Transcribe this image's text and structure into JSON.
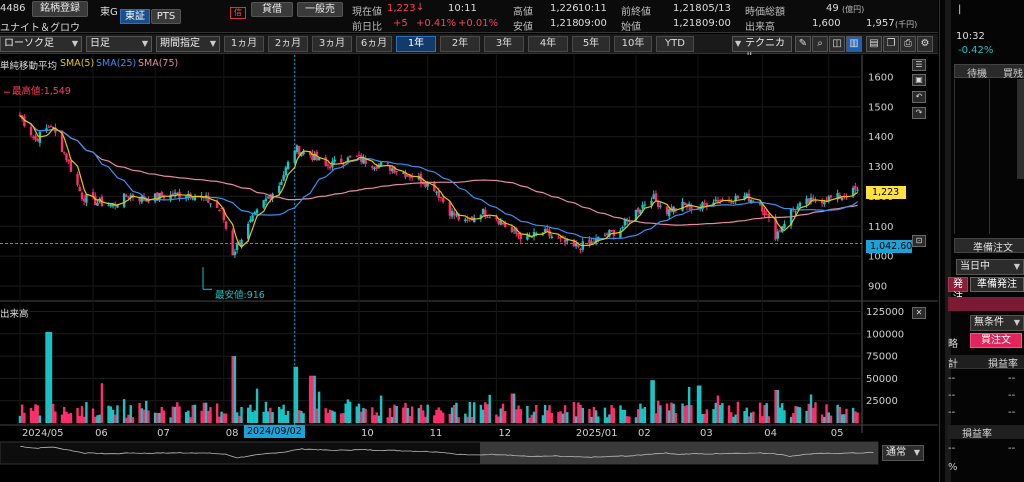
{
  "header": {
    "code": "4486",
    "register_label": "銘柄登録",
    "market": "東G",
    "name": "ユナイト＆グロウ",
    "exchange_tab_tse": "東証",
    "exchange_tab_pts": "PTS",
    "badge": "信",
    "lend_label": "貸借",
    "category_label": "一般売",
    "current_price_label": "現在値",
    "current_price": "1,223",
    "current_arrow": "↓",
    "current_time": "10:11",
    "change_label": "前日比",
    "change_value": "+5",
    "change_pct": "+0.41%",
    "change_pct2": "+0.01%",
    "high_label": "高値",
    "high_value": "1,226",
    "high_time": "10:11",
    "low_label": "安値",
    "low_value": "1,218",
    "low_time": "09:00",
    "prev_close_label": "前終値",
    "prev_close_value": "1,218",
    "prev_close_date": "05/13",
    "open_label": "始値",
    "open_value": "1,218",
    "open_time": "09:00",
    "market_cap_label": "時価総額",
    "market_cap_value": "49",
    "market_cap_unit": "(億円)",
    "volume_label": "出来高",
    "volume_value": "1,600",
    "turnover_value": "1,957",
    "turnover_unit": "(千円)"
  },
  "toolbar": {
    "chart_type": "ローソク足",
    "period_type": "日足",
    "period_spec": "期間指定",
    "ranges": [
      "1ヵ月",
      "2ヵ月",
      "3ヵ月",
      "6ヵ月",
      "1年",
      "2年",
      "3年",
      "4年",
      "5年",
      "10年",
      "YTD"
    ],
    "active_range": "1年",
    "technical_label": "テクニカル"
  },
  "chart": {
    "legend_title": "単純移動平均",
    "sma5_label": "SMA(5)",
    "sma25_label": "SMA(25)",
    "sma75_label": "SMA(75)",
    "high_annotation": "最高値:1,549",
    "low_annotation": "最安値:916",
    "last_price_tag": "1,223",
    "hline_tag": "1,042.60",
    "volume_title": "出来高",
    "cursor_date_tag": "2024/09/02",
    "view_mode": "通常",
    "colors": {
      "up": "#19c4c4",
      "down": "#ff2d6b",
      "sma5": "#e8c800",
      "sma25": "#3a8ff0",
      "sma75": "#e88aa0",
      "price_tag": "#ffe23d",
      "hline_tag": "#1ba3d8"
    }
  },
  "chart_data": [
    {
      "type": "candlestick",
      "title": "",
      "y_ticks": [
        900,
        1000,
        1100,
        1200,
        1300,
        1400,
        1500,
        1600
      ],
      "ylim": [
        860,
        1640
      ],
      "x_ticks": [
        "2024/05",
        "06",
        "07",
        "08",
        "2024/09/02",
        "10",
        "11",
        "12",
        "2025/01",
        "02",
        "03",
        "04",
        "05"
      ],
      "high_marker": 1549,
      "low_marker": 916,
      "last_price": 1223,
      "hline": 1042.6,
      "series": [
        {
          "name": "SMA(5)"
        },
        {
          "name": "SMA(25)"
        },
        {
          "name": "SMA(75)"
        }
      ],
      "close_path": [
        [
          "2024-05-01",
          1470
        ],
        [
          "2024-05-08",
          1390
        ],
        [
          "2024-05-15",
          1440
        ],
        [
          "2024-05-22",
          1330
        ],
        [
          "2024-05-29",
          1200
        ],
        [
          "2024-06-05",
          1180
        ],
        [
          "2024-06-12",
          1170
        ],
        [
          "2024-06-19",
          1205
        ],
        [
          "2024-06-26",
          1190
        ],
        [
          "2024-07-03",
          1200
        ],
        [
          "2024-07-10",
          1205
        ],
        [
          "2024-07-17",
          1210
        ],
        [
          "2024-07-24",
          1190
        ],
        [
          "2024-07-31",
          1150
        ],
        [
          "2024-08-05",
          1010
        ],
        [
          "2024-08-12",
          1100
        ],
        [
          "2024-08-19",
          1180
        ],
        [
          "2024-08-26",
          1240
        ],
        [
          "2024-09-02",
          1360
        ],
        [
          "2024-09-09",
          1340
        ],
        [
          "2024-09-16",
          1300
        ],
        [
          "2024-09-23",
          1320
        ],
        [
          "2024-09-30",
          1330
        ],
        [
          "2024-10-07",
          1310
        ],
        [
          "2024-10-14",
          1300
        ],
        [
          "2024-10-21",
          1280
        ],
        [
          "2024-10-28",
          1260
        ],
        [
          "2024-11-04",
          1230
        ],
        [
          "2024-11-11",
          1150
        ],
        [
          "2024-11-18",
          1110
        ],
        [
          "2024-11-25",
          1150
        ],
        [
          "2024-12-02",
          1130
        ],
        [
          "2024-12-09",
          1080
        ],
        [
          "2024-12-16",
          1060
        ],
        [
          "2024-12-23",
          1080
        ],
        [
          "2025-01-06",
          1030
        ],
        [
          "2025-01-13",
          1040
        ],
        [
          "2025-01-20",
          1070
        ],
        [
          "2025-01-27",
          1090
        ],
        [
          "2025-02-03",
          1150
        ],
        [
          "2025-02-10",
          1200
        ],
        [
          "2025-02-17",
          1150
        ],
        [
          "2025-02-24",
          1170
        ],
        [
          "2025-03-03",
          1160
        ],
        [
          "2025-03-10",
          1190
        ],
        [
          "2025-03-17",
          1190
        ],
        [
          "2025-03-24",
          1200
        ],
        [
          "2025-03-31",
          1180
        ],
        [
          "2025-04-07",
          1070
        ],
        [
          "2025-04-14",
          1150
        ],
        [
          "2025-04-21",
          1180
        ],
        [
          "2025-04-28",
          1190
        ],
        [
          "2025-05-07",
          1200
        ],
        [
          "2025-05-14",
          1223
        ]
      ]
    },
    {
      "type": "bar",
      "title": "出来高",
      "y_ticks": [
        25000,
        50000,
        75000,
        100000,
        125000
      ],
      "ylim": [
        0,
        130000
      ],
      "peaks": [
        [
          "2024-05-14",
          102000
        ],
        [
          "2024-08-05",
          75000
        ],
        [
          "2024-09-02",
          63000
        ],
        [
          "2024-09-10",
          53000
        ],
        [
          "2024-12-09",
          33000
        ],
        [
          "2025-02-10",
          48000
        ],
        [
          "2025-03-03",
          42000
        ],
        [
          "2025-04-07",
          37000
        ]
      ]
    }
  ],
  "right_panel": {
    "time": "10:32",
    "change_pct": "-0.42%",
    "col_wait": "待機",
    "col_buysell": "買残",
    "prep_order_header": "準備注文",
    "session_select": "当日中",
    "tab_send": "発注",
    "tab_prep": "準備発注",
    "cond_select": "無条件",
    "strategy_label": "略",
    "buy_order": "買注文",
    "total_label": "計",
    "pl_label": "損益率",
    "pl_rate_label": "損益率",
    "dash": "--",
    "pct_sign": "%"
  }
}
